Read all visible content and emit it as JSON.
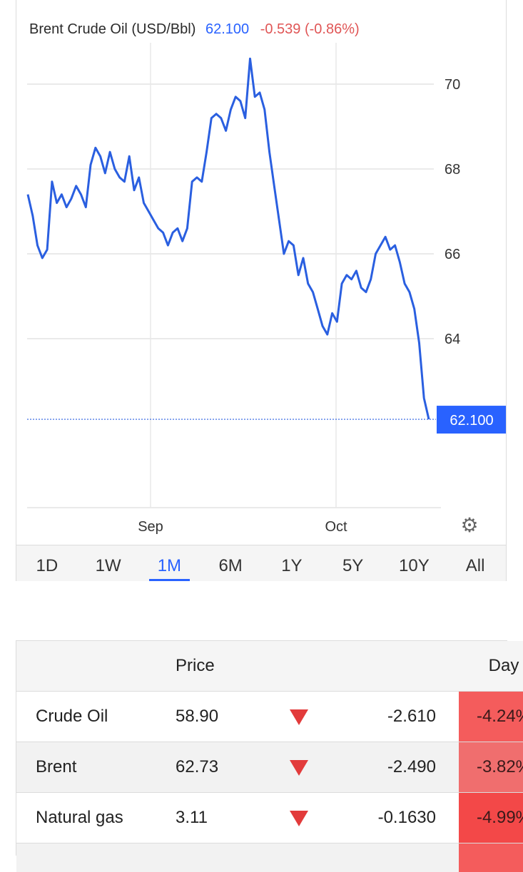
{
  "header": {
    "name": "Brent Crude Oil (USD/Bbl)",
    "price": "62.100",
    "change": "-0.539 (-0.86%)"
  },
  "chart_data": {
    "type": "line",
    "series": [
      {
        "values": [
          67.4,
          66.9,
          66.2,
          65.9,
          66.1,
          67.7,
          67.2,
          67.4,
          67.1,
          67.3,
          67.6,
          67.4,
          67.1,
          68.1,
          68.5,
          68.3,
          67.9,
          68.4,
          68.0,
          67.8,
          67.7,
          68.3,
          67.5,
          67.8,
          67.2,
          67.0,
          66.8,
          66.6,
          66.5,
          66.2,
          66.5,
          66.6,
          66.3,
          66.6,
          67.7,
          67.8,
          67.7,
          68.4,
          69.2,
          69.3,
          69.2,
          68.9,
          69.4,
          69.7,
          69.6,
          69.2,
          70.6,
          69.7,
          69.8,
          69.4,
          68.4,
          67.6,
          66.8,
          66.0,
          66.3,
          66.2,
          65.5,
          65.9,
          65.3,
          65.1,
          64.7,
          64.3,
          64.1,
          64.6,
          64.4,
          65.3,
          65.5,
          65.4,
          65.6,
          65.2,
          65.1,
          65.4,
          66.0,
          66.2,
          66.4,
          66.1,
          66.2,
          65.8,
          65.3,
          65.1,
          64.7,
          63.9,
          62.6,
          62.1
        ]
      }
    ],
    "y_ticks": [
      "70",
      "68",
      "66",
      "64"
    ],
    "x_ticks": [
      "Sep",
      "Oct"
    ],
    "ylim": [
      60,
      71.5
    ],
    "last_value_label": "62.100",
    "line_color": "#2a5fe0",
    "grid": true
  },
  "ranges": [
    "1D",
    "1W",
    "1M",
    "6M",
    "1Y",
    "5Y",
    "10Y",
    "All"
  ],
  "active_range": "1M",
  "table": {
    "headers": {
      "name": "",
      "price": "Price",
      "change": "",
      "day": "Day"
    },
    "rows": [
      {
        "name": "Crude Oil",
        "price": "58.90",
        "change": "-2.610",
        "day": "-4.24%",
        "day_color": "#f45c5c"
      },
      {
        "name": "Brent",
        "price": "62.73",
        "change": "-2.490",
        "day": "-3.82%",
        "day_color": "#f06e6e"
      },
      {
        "name": "Natural gas",
        "price": "3.11",
        "change": "-0.1630",
        "day": "-4.99%",
        "day_color": "#f34848"
      }
    ]
  }
}
